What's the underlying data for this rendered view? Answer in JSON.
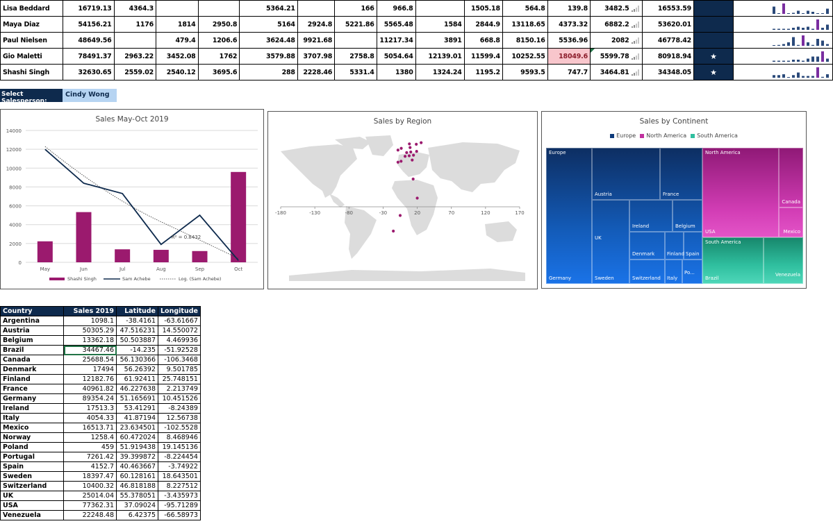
{
  "sales_table": {
    "rows": [
      {
        "name": "Lisa Beddard",
        "cells": [
          "16719.13",
          "4364.3",
          "",
          "",
          "5364.21",
          "",
          "166",
          "966.8",
          "",
          "1505.18",
          "564.8",
          "139.8",
          "3482.5"
        ],
        "total": "16553.59",
        "star": "",
        "highlight": -1,
        "spark": [
          7,
          0,
          10,
          0,
          1,
          3,
          0,
          3,
          2,
          0,
          0,
          5
        ]
      },
      {
        "name": "Maya Diaz",
        "cells": [
          "54156.21",
          "1176",
          "1814",
          "2950.8",
          "5164",
          "2924.8",
          "5221.86",
          "5565.48",
          "1584",
          "2844.9",
          "13118.65",
          "4373.32",
          "6882.2"
        ],
        "total": "53620.01",
        "star": "",
        "highlight": -1,
        "spark": [
          1,
          1,
          1,
          1,
          2,
          3,
          2,
          3,
          1,
          10,
          2,
          5
        ]
      },
      {
        "name": "Paul Nielsen",
        "cells": [
          "48649.56",
          "",
          "479.4",
          "1206.6",
          "3624.48",
          "9921.68",
          "",
          "11217.34",
          "3891",
          "668.8",
          "8150.16",
          "5536.96",
          "2082"
        ],
        "total": "46778.42",
        "star": "",
        "highlight": -1,
        "spark": [
          0,
          1,
          2,
          4,
          10,
          1,
          12,
          4,
          1,
          8,
          6,
          2
        ]
      },
      {
        "name": "Gio Maletti",
        "cells": [
          "78491.37",
          "2963.22",
          "3452.08",
          "1762",
          "3579.88",
          "3707.98",
          "2758.8",
          "5054.64",
          "12139.01",
          "11599.4",
          "10252.55",
          "18049.6",
          "5599.78"
        ],
        "total": "80918.94",
        "star": "★",
        "highlight": 11,
        "spark": [
          1,
          1,
          1,
          1,
          2,
          2,
          1,
          3,
          5,
          5,
          10,
          3
        ]
      },
      {
        "name": "Shashi Singh",
        "cells": [
          "32630.65",
          "2559.02",
          "2540.12",
          "3695.6",
          "288",
          "2228.46",
          "5331.4",
          "1380",
          "1324.24",
          "1195.2",
          "9593.5",
          "747.7",
          "3464.81"
        ],
        "total": "34348.05",
        "star": "★",
        "highlight": -1,
        "spark": [
          3,
          3,
          4,
          0,
          3,
          6,
          2,
          2,
          2,
          12,
          1,
          4
        ]
      }
    ]
  },
  "selector": {
    "label": "Select Salesperson:",
    "value": "Cindy Wong"
  },
  "line_chart": {
    "chart_data": {
      "type": "bar",
      "title": "Sales May-Oct 2019",
      "categories": [
        "May",
        "Jun",
        "Jul",
        "Aug",
        "Sep",
        "Oct"
      ],
      "ylim": [
        0,
        14000
      ],
      "yticks": [
        "0",
        "2000",
        "4000",
        "6000",
        "8000",
        "10000",
        "12000",
        "14000"
      ],
      "series": [
        {
          "name": "Shashi Singh",
          "type": "bar",
          "color": "#9b1a6e",
          "values": [
            2228.46,
            5331.4,
            1380,
            1324.24,
            1195.2,
            9593.5
          ]
        },
        {
          "name": "Sam Achebe",
          "type": "line",
          "color": "#0e2a4d",
          "values": [
            12000,
            8400,
            7300,
            1900,
            5000,
            200
          ]
        }
      ],
      "trendline_label": "Log. (Sam Achebe)",
      "r2_label": "R² = 0.8432"
    }
  },
  "map_chart": {
    "chart_data": {
      "type": "scatter",
      "title": "Sales by Region",
      "xticks": [
        "-180",
        "-130",
        "-80",
        "-30",
        "20",
        "70",
        "120",
        "170"
      ],
      "xlim": [
        -180,
        170
      ],
      "points": [
        {
          "x": 14.5,
          "y": 47.5
        },
        {
          "x": 4.5,
          "y": 50.5
        },
        {
          "x": 2.2,
          "y": 46.2
        },
        {
          "x": 9.5,
          "y": 56.3
        },
        {
          "x": 25.7,
          "y": 61.9
        },
        {
          "x": 10.5,
          "y": 51.2
        },
        {
          "x": -8.2,
          "y": 53.4
        },
        {
          "x": 12.6,
          "y": 41.9
        },
        {
          "x": 8.5,
          "y": 60.5
        },
        {
          "x": 19.1,
          "y": 51.9
        },
        {
          "x": -8.2,
          "y": 39.4
        },
        {
          "x": -3.7,
          "y": 40.5
        },
        {
          "x": 18.6,
          "y": 60.1
        },
        {
          "x": 8.2,
          "y": 46.8
        },
        {
          "x": -3.4,
          "y": 55.4
        },
        {
          "x": 14.0,
          "y": 20.0
        },
        {
          "x": 20.0,
          "y": -2.0
        },
        {
          "x": -5.0,
          "y": -22.0
        },
        {
          "x": -15.0,
          "y": -40.0
        }
      ]
    }
  },
  "treemap": {
    "title": "Sales by Continent",
    "legend": [
      {
        "name": "Europe",
        "color": "#0d3a7a"
      },
      {
        "name": "North America",
        "color": "#c0309e"
      },
      {
        "name": "South America",
        "color": "#2fbf9f"
      }
    ],
    "labels": {
      "europe": "Europe",
      "germany": "Germany",
      "austria": "Austria",
      "france": "France",
      "uk": "UK",
      "sweden": "Sweden",
      "ireland": "Ireland",
      "belgium": "Belgium",
      "denmark": "Denmark",
      "finland": "Finland",
      "spain": "Spain",
      "switzerland": "Switzerland",
      "italy": "Italy",
      "portugal": "Po...",
      "north_america": "North America",
      "usa": "USA",
      "canada": "Canada",
      "mexico": "Mexico",
      "south_america": "South America",
      "brazil": "Brazil",
      "venezuela": "Venezuela"
    }
  },
  "country_table": {
    "headers": [
      "Country",
      "Sales 2019",
      "Latitude",
      "Longitude"
    ],
    "rows": [
      [
        "Argentina",
        "1098.1",
        "-38.4161",
        "-63.61667"
      ],
      [
        "Austria",
        "50305.29",
        "47.516231",
        "14.550072"
      ],
      [
        "Belgium",
        "13362.18",
        "50.503887",
        "4.469936"
      ],
      [
        "Brazil",
        "34467.46",
        "-14.235",
        "-51.92528"
      ],
      [
        "Canada",
        "25688.54",
        "56.130366",
        "-106.3468"
      ],
      [
        "Denmark",
        "17494",
        "56.26392",
        "9.501785"
      ],
      [
        "Finland",
        "12182.76",
        "61.92411",
        "25.748151"
      ],
      [
        "France",
        "40961.82",
        "46.227638",
        "2.213749"
      ],
      [
        "Germany",
        "89354.24",
        "51.165691",
        "10.451526"
      ],
      [
        "Ireland",
        "17513.3",
        "53.41291",
        "-8.24389"
      ],
      [
        "Italy",
        "4054.33",
        "41.87194",
        "12.56738"
      ],
      [
        "Mexico",
        "16513.71",
        "23.634501",
        "-102.5528"
      ],
      [
        "Norway",
        "1258.4",
        "60.472024",
        "8.468946"
      ],
      [
        "Poland",
        "459",
        "51.919438",
        "19.145136"
      ],
      [
        "Portugal",
        "7261.42",
        "39.399872",
        "-8.224454"
      ],
      [
        "Spain",
        "4152.7",
        "40.463667",
        "-3.74922"
      ],
      [
        "Sweden",
        "18397.47",
        "60.128161",
        "18.643501"
      ],
      [
        "Switzerland",
        "10400.32",
        "46.818188",
        "8.227512"
      ],
      [
        "UK",
        "25014.04",
        "55.378051",
        "-3.435973"
      ],
      [
        "USA",
        "77362.31",
        "37.09024",
        "-95.71289"
      ],
      [
        "Venezuela",
        "22248.48",
        "6.42375",
        "-66.58973"
      ]
    ]
  }
}
